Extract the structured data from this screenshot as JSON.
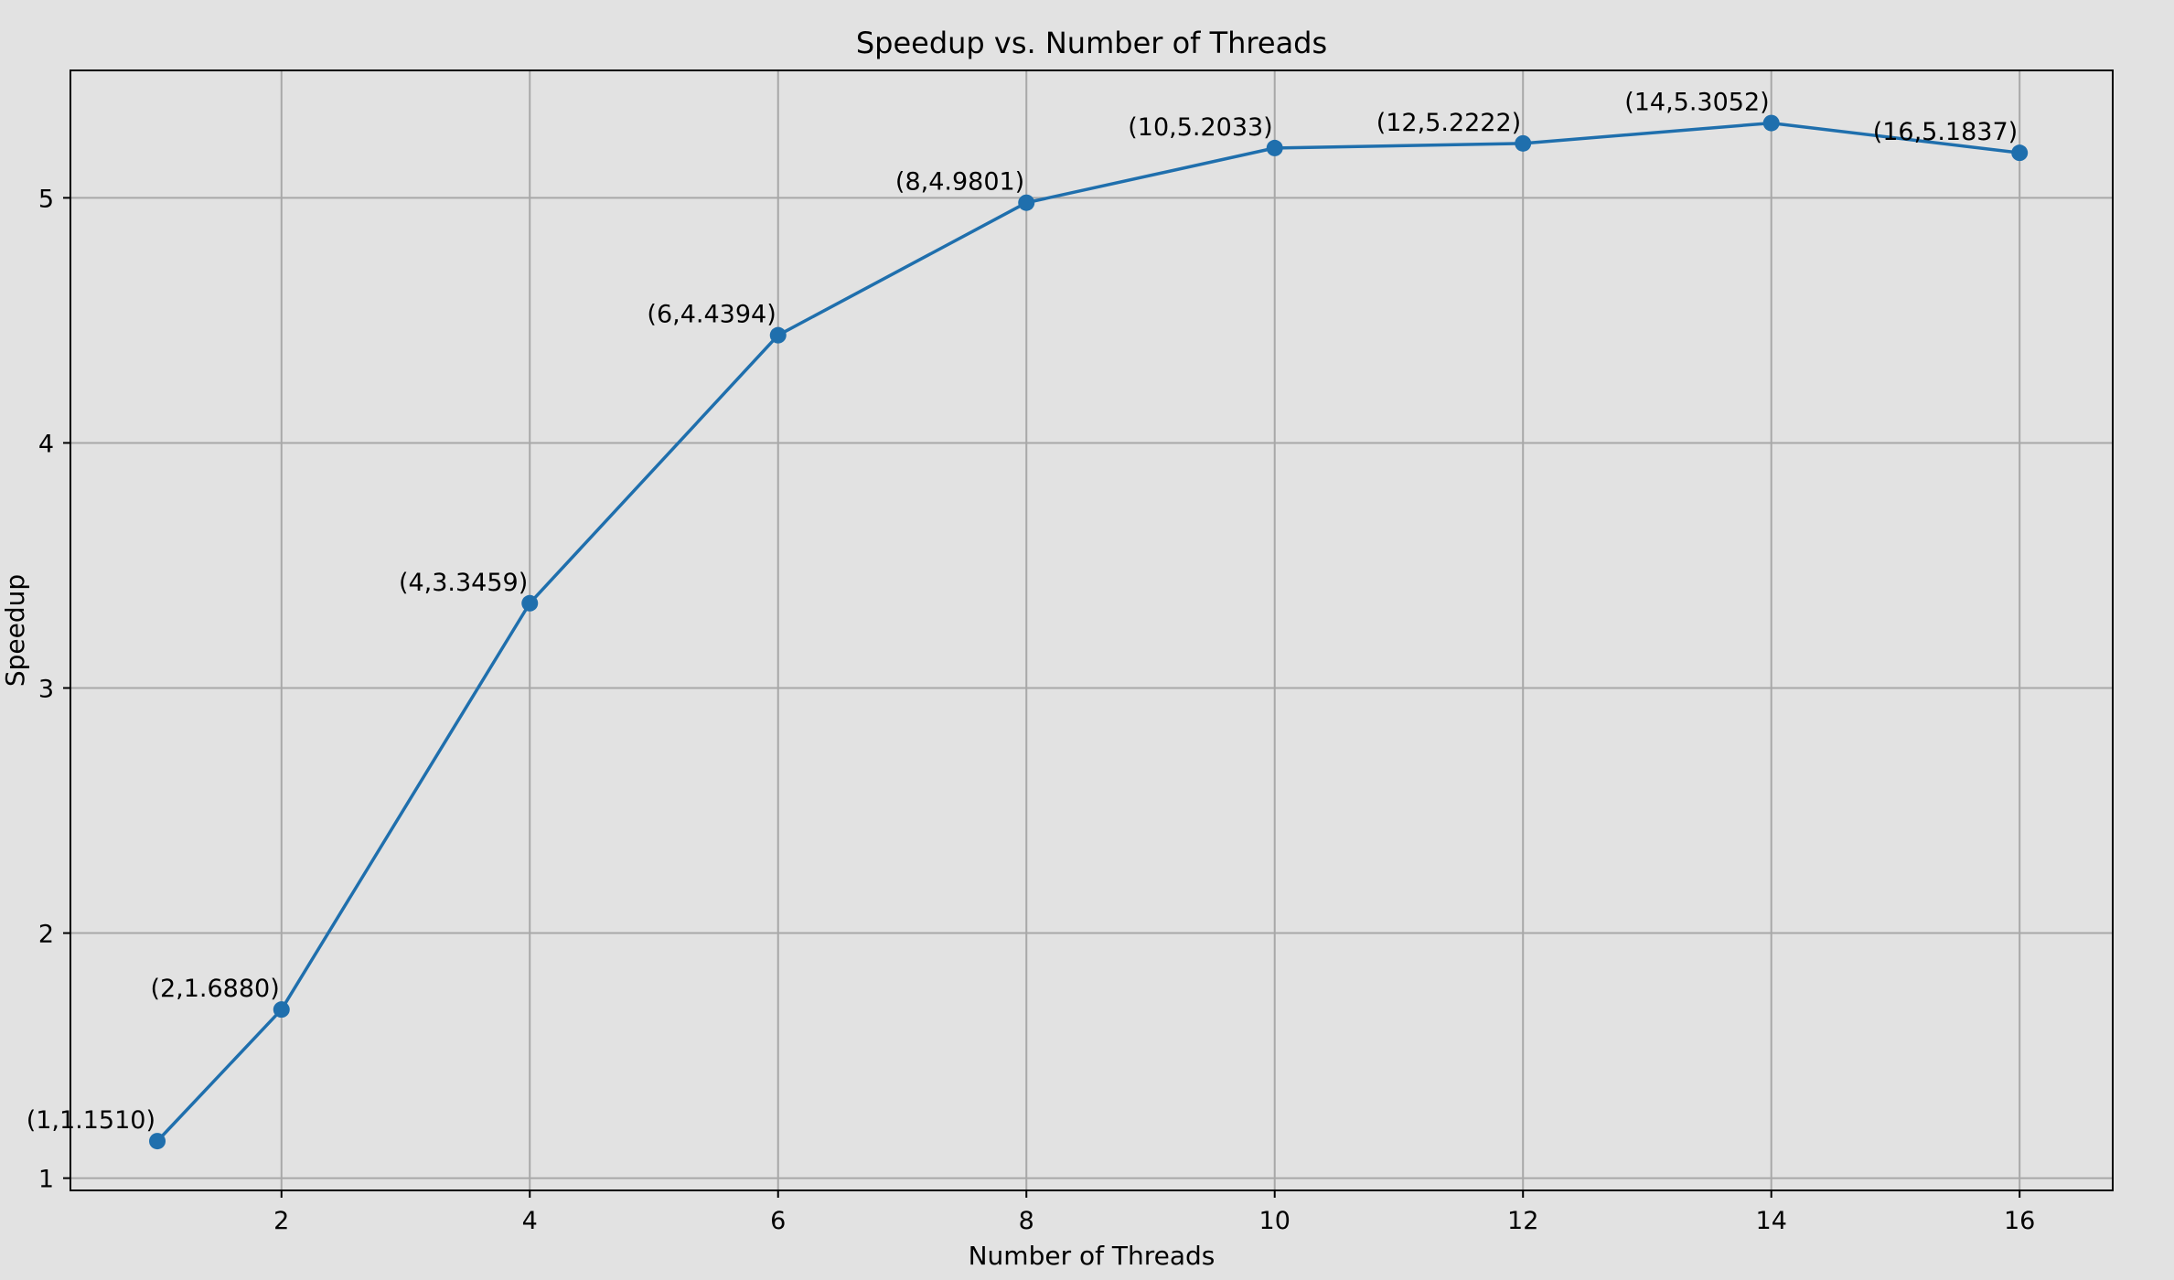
{
  "chart_data": {
    "type": "line",
    "title": "Speedup vs. Number of Threads",
    "xlabel": "Number of Threads",
    "ylabel": "Speedup",
    "xlim": [
      0.3,
      16.75
    ],
    "ylim": [
      0.95,
      5.52
    ],
    "xticks": [
      2,
      4,
      6,
      8,
      10,
      12,
      14,
      16
    ],
    "yticks": [
      1,
      2,
      3,
      4,
      5
    ],
    "grid": true,
    "colors": {
      "line": "#1f6fad",
      "marker": "#1f6fad",
      "background": "#e2e2e2",
      "grid": "#a8a8a8"
    },
    "series": [
      {
        "x": [
          1,
          2,
          4,
          6,
          8,
          10,
          12,
          14,
          16
        ],
        "y": [
          1.151,
          1.688,
          3.3459,
          4.4394,
          4.9801,
          5.2033,
          5.2222,
          5.3052,
          5.1837
        ],
        "labels": [
          "(1,1.1510)",
          "(2,1.6880)",
          "(4,3.3459)",
          "(6,4.4394)",
          "(8,4.9801)",
          "(10,5.2033)",
          "(12,5.2222)",
          "(14,5.3052)",
          "(16,5.1837)"
        ]
      }
    ]
  }
}
